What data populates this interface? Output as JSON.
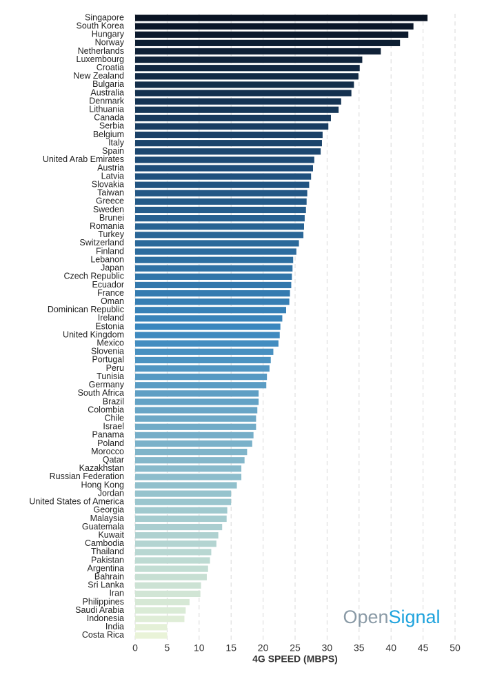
{
  "chart_data": {
    "type": "barh",
    "categories": [
      "Singapore",
      "South Korea",
      "Hungary",
      "Norway",
      "Netherlands",
      "Luxembourg",
      "Croatia",
      "New Zealand",
      "Bulgaria",
      "Australia",
      "Denmark",
      "Lithuania",
      "Canada",
      "Serbia",
      "Belgium",
      "Italy",
      "Spain",
      "United Arab Emirates",
      "Austria",
      "Latvia",
      "Slovakia",
      "Taiwan",
      "Greece",
      "Sweden",
      "Brunei",
      "Romania",
      "Turkey",
      "Switzerland",
      "Finland",
      "Lebanon",
      "Japan",
      "Czech Republic",
      "Ecuador",
      "France",
      "Oman",
      "Dominican Republic",
      "Ireland",
      "Estonia",
      "United Kingdom",
      "Mexico",
      "Slovenia",
      "Portugal",
      "Peru",
      "Tunisia",
      "Germany",
      "South Africa",
      "Brazil",
      "Colombia",
      "Chile",
      "Israel",
      "Panama",
      "Poland",
      "Morocco",
      "Qatar",
      "Kazakhstan",
      "Russian Federation",
      "Hong Kong",
      "Jordan",
      "United States of America",
      "Georgia",
      "Malaysia",
      "Guatemala",
      "Kuwait",
      "Cambodia",
      "Thailand",
      "Pakistan",
      "Argentina",
      "Bahrain",
      "Sri Lanka",
      "Iran",
      "Philippines",
      "Saudi Arabia",
      "Indonesia",
      "India",
      "Costa Rica"
    ],
    "values": [
      45.7,
      43.5,
      42.7,
      41.4,
      38.4,
      35.5,
      35.1,
      34.9,
      34.2,
      33.8,
      32.2,
      31.8,
      30.6,
      30.2,
      29.3,
      29.2,
      29.0,
      28.0,
      27.8,
      27.5,
      27.2,
      26.9,
      26.8,
      26.7,
      26.5,
      26.4,
      26.3,
      25.6,
      25.2,
      24.7,
      24.6,
      24.5,
      24.4,
      24.2,
      24.1,
      23.6,
      23.0,
      22.7,
      22.6,
      22.4,
      21.6,
      21.2,
      21.0,
      20.6,
      20.5,
      19.3,
      19.3,
      19.1,
      18.9,
      18.9,
      18.5,
      18.3,
      17.5,
      17.1,
      16.6,
      16.6,
      15.9,
      15.0,
      15.0,
      14.4,
      14.3,
      13.6,
      13.0,
      12.7,
      11.9,
      11.7,
      11.4,
      11.2,
      10.3,
      10.2,
      8.5,
      7.9,
      7.7,
      5.0,
      5.0
    ],
    "color_scale": [
      "#0a1424",
      "#1f4f7c",
      "#3a87be",
      "#8fbfcc",
      "#e9f3d8"
    ],
    "xlabel": "4G SPEED (MBPS)",
    "xlim": [
      0,
      50
    ],
    "xticks": [
      0,
      5,
      10,
      15,
      20,
      25,
      30,
      35,
      40,
      45,
      50
    ],
    "grid": true,
    "watermark": [
      "Open",
      "Signal"
    ]
  }
}
